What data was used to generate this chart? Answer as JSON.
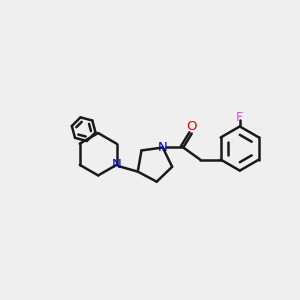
{
  "background_color": "#efefef",
  "bond_color": "#1a1a1a",
  "bond_width": 1.8,
  "N_color": "#0000ee",
  "O_color": "#ee0000",
  "F_color": "#ee44ee",
  "figsize": [
    3.0,
    3.0
  ],
  "dpi": 100,
  "xlim": [
    0,
    10
  ],
  "ylim": [
    0,
    10
  ]
}
